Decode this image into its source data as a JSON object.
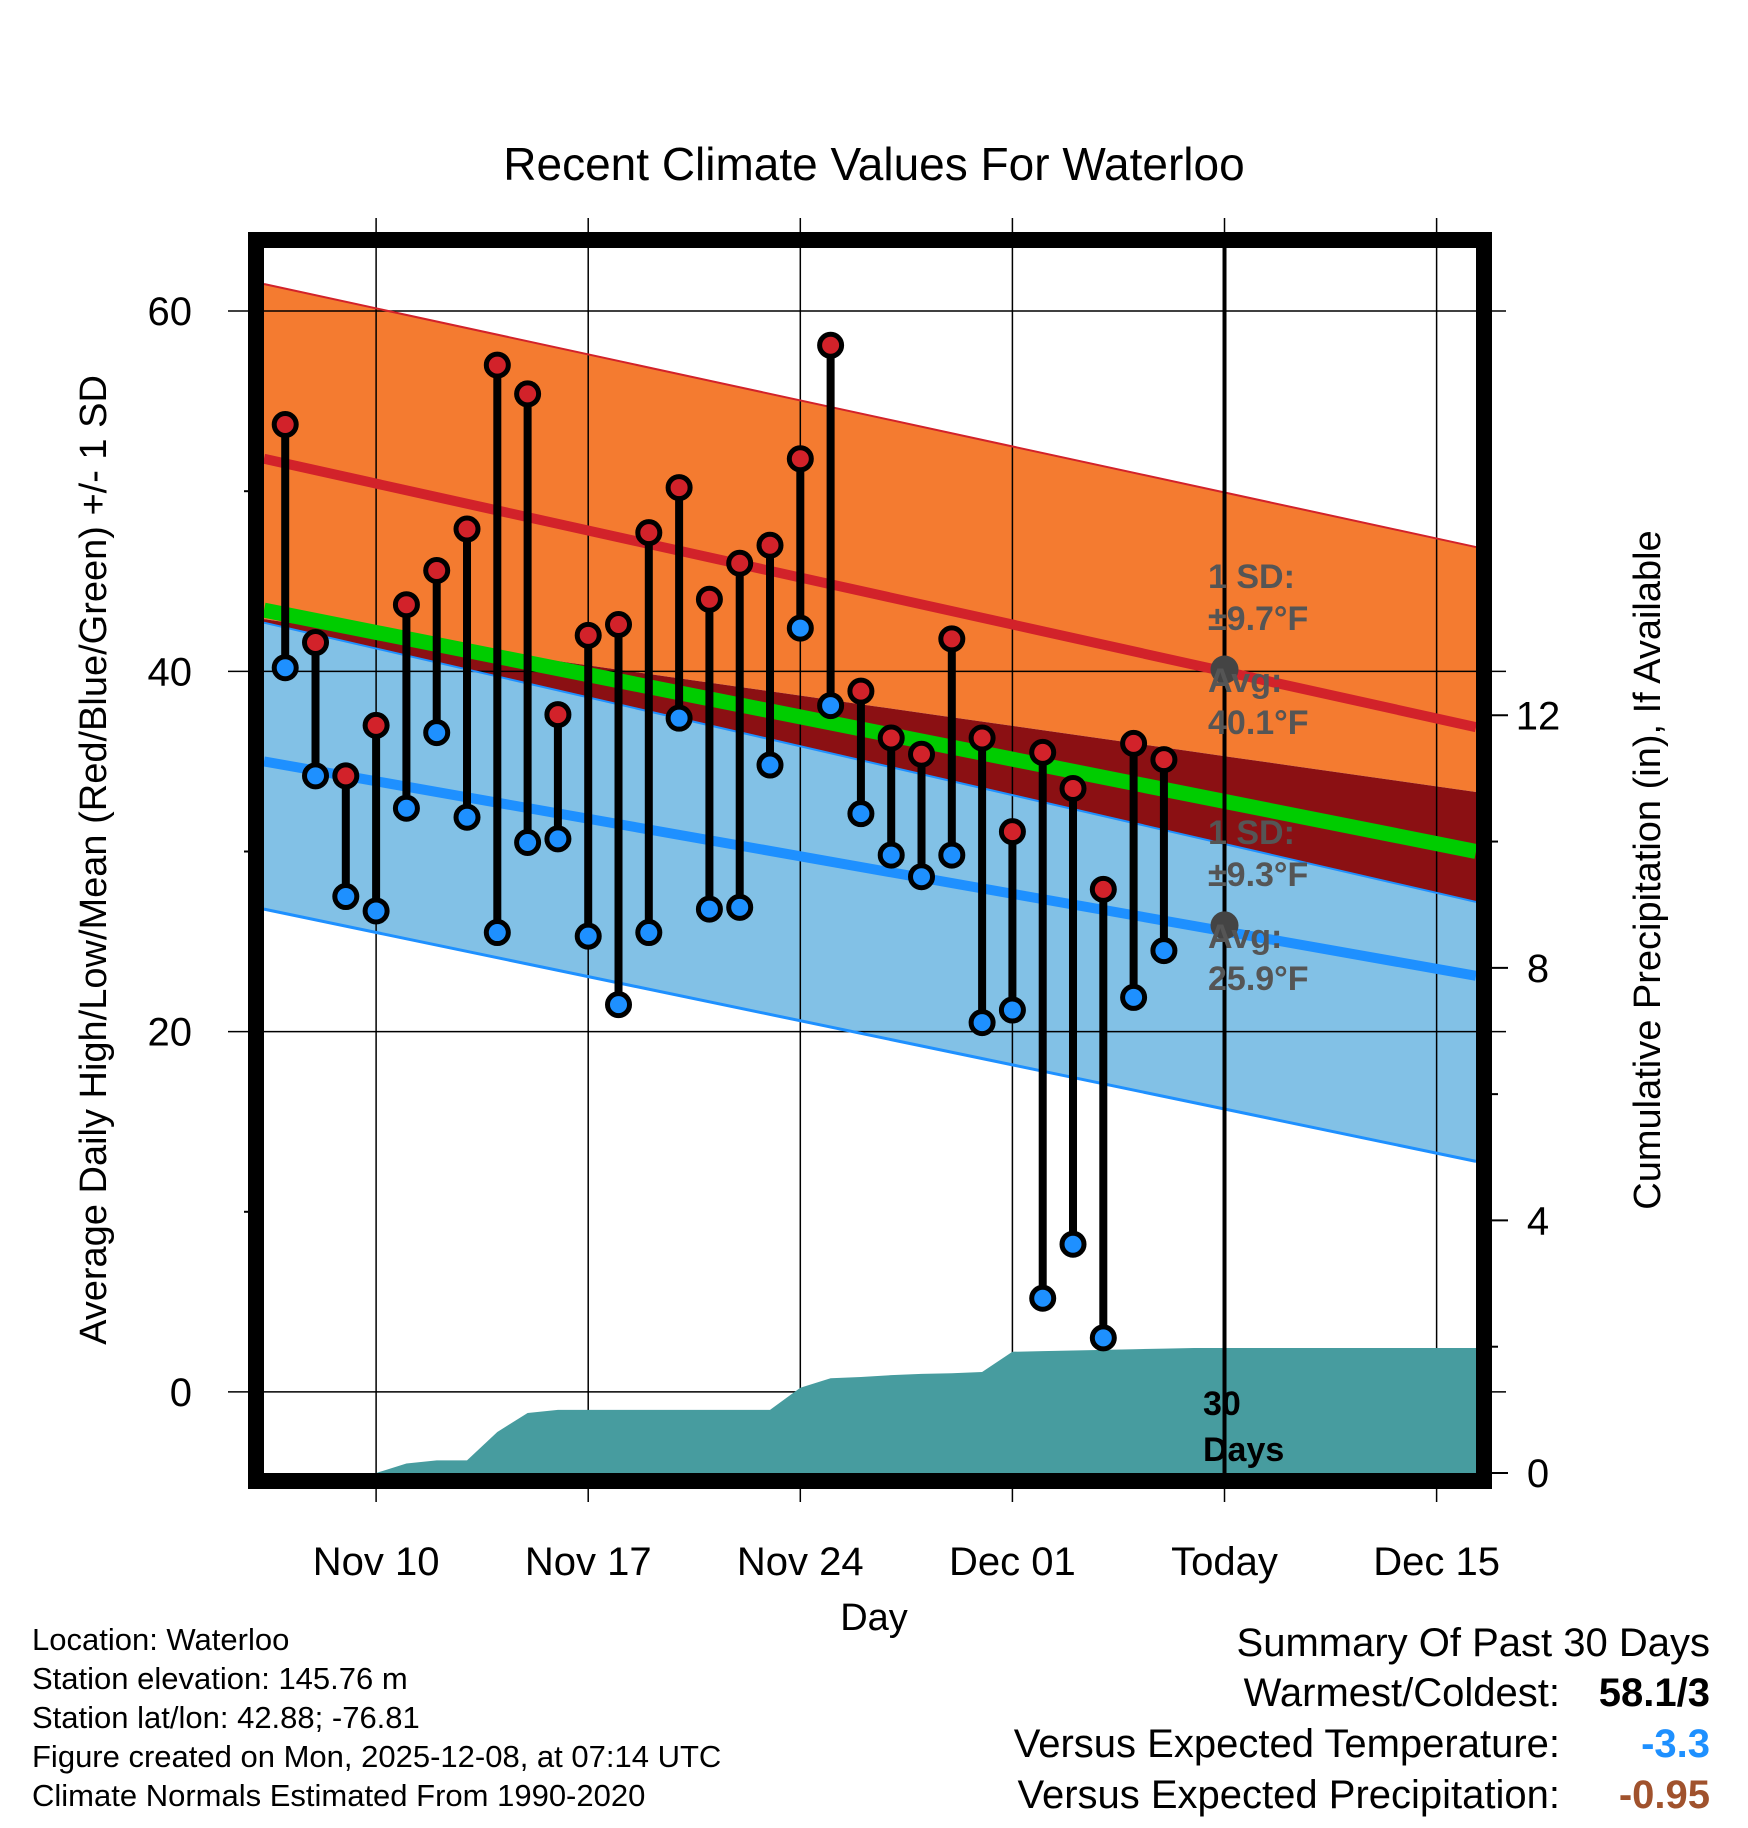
{
  "chart_data": {
    "type": "line",
    "title": "Recent Climate Values For Waterloo",
    "xlabel": "Day",
    "ylabel_left": "Average Daily High/Low/Mean (Red/Blue/Green) +/- 1 SD",
    "ylabel_right": "Cumulative Precipitation (in), If Available",
    "x_range_days": [
      -28.7,
      11.3
    ],
    "x_ticks": [
      {
        "day": -25,
        "label": "Nov 10"
      },
      {
        "day": -18,
        "label": "Nov 17"
      },
      {
        "day": -11,
        "label": "Nov 24"
      },
      {
        "day": -4,
        "label": "Dec 01"
      },
      {
        "day": 3,
        "label": "Today"
      },
      {
        "day": 10,
        "label": "Dec 15"
      }
    ],
    "y_left_range": [
      -4.5,
      63.5
    ],
    "y_left_ticks": [
      "0",
      "20",
      "40",
      "60"
    ],
    "y_left_tick_values": [
      0,
      20,
      40,
      60
    ],
    "y_right_range": [
      0,
      19.4
    ],
    "y_right_ticks": [
      "0",
      "4",
      "8",
      "12"
    ],
    "y_right_tick_values": [
      0,
      4,
      8,
      12
    ],
    "normal_high_start": 51.8,
    "normal_high_end": 36.9,
    "normal_high_upper_start": 61.5,
    "normal_high_upper_end": 46.9,
    "normal_high_lower_start": 42.9,
    "normal_high_lower_end": 33.3,
    "normal_low_start": 35.0,
    "normal_low_end": 23.1,
    "normal_low_upper_start": 42.7,
    "normal_low_upper_end": 27.2,
    "normal_low_lower_start": 26.8,
    "normal_low_lower_end": 12.8,
    "normal_mean_start": 43.4,
    "normal_mean_end": 30.0,
    "highs": [
      53.7,
      41.6,
      34.2,
      37.0,
      43.7,
      45.6,
      47.9,
      57.0,
      55.4,
      37.6,
      42.0,
      42.6,
      47.7,
      50.2,
      44.0,
      46.0,
      47.0,
      51.8,
      58.1,
      38.9,
      36.3,
      35.4,
      41.8,
      36.3,
      31.1,
      35.5,
      33.5,
      27.9,
      36.0,
      35.1
    ],
    "lows": [
      40.2,
      34.2,
      27.5,
      26.7,
      32.4,
      36.6,
      31.9,
      25.5,
      30.5,
      30.7,
      25.3,
      21.5,
      25.5,
      37.4,
      26.8,
      26.9,
      34.8,
      42.4,
      38.1,
      32.1,
      29.8,
      28.6,
      29.8,
      20.5,
      21.2,
      5.2,
      8.2,
      3.0,
      21.9,
      24.5
    ],
    "precip_cumulative": [
      0.0,
      0.0,
      0.0,
      0.0,
      0.15,
      0.2,
      0.2,
      0.65,
      0.95,
      1.0,
      1.0,
      1.0,
      1.0,
      1.0,
      1.0,
      1.0,
      1.0,
      1.35,
      1.5,
      1.52,
      1.55,
      1.57,
      1.58,
      1.6,
      1.92,
      1.93,
      1.94,
      1.95,
      1.96,
      1.97,
      1.98
    ],
    "today_normal_high": 40.1,
    "today_normal_low": 25.9,
    "annotations": {
      "high_sd": "1 SD:",
      "high_sd_value": "±9.7°F",
      "high_avg": "Avg:",
      "high_avg_value": "40.1°F",
      "low_sd": "1 SD:",
      "low_sd_value": "±9.3°F",
      "low_avg": "Avg:",
      "low_avg_value": "25.9°F",
      "days_count": "30",
      "days_label": "Days"
    },
    "colors": {
      "high_band": "#f47b30",
      "high_line": "#d2222a",
      "low_band": "#82c1e6",
      "low_line": "#1e90ff",
      "overlap_band": "#8b1013",
      "mean_line": "#00cc00",
      "precip": "#479c9f",
      "high_dot": "#d2222a",
      "low_dot": "#1e90ff",
      "today_dot": "#444444"
    }
  },
  "footer": {
    "location": "Location: Waterloo",
    "elevation": "Station elevation: 145.76 m",
    "latlon": "Station lat/lon: 42.88; -76.81",
    "created": "Figure created on Mon, 2025-12-08, at 07:14 UTC",
    "normals": "Climate Normals Estimated From 1990-2020"
  },
  "summary": {
    "title": "Summary Of Past 30 Days",
    "warmest_label": "Warmest/Coldest:",
    "warmest_value": "58.1/3",
    "temp_label": "Versus Expected Temperature:",
    "temp_value": "-3.3",
    "precip_label": "Versus Expected Precipitation:",
    "precip_value": "-0.95"
  }
}
